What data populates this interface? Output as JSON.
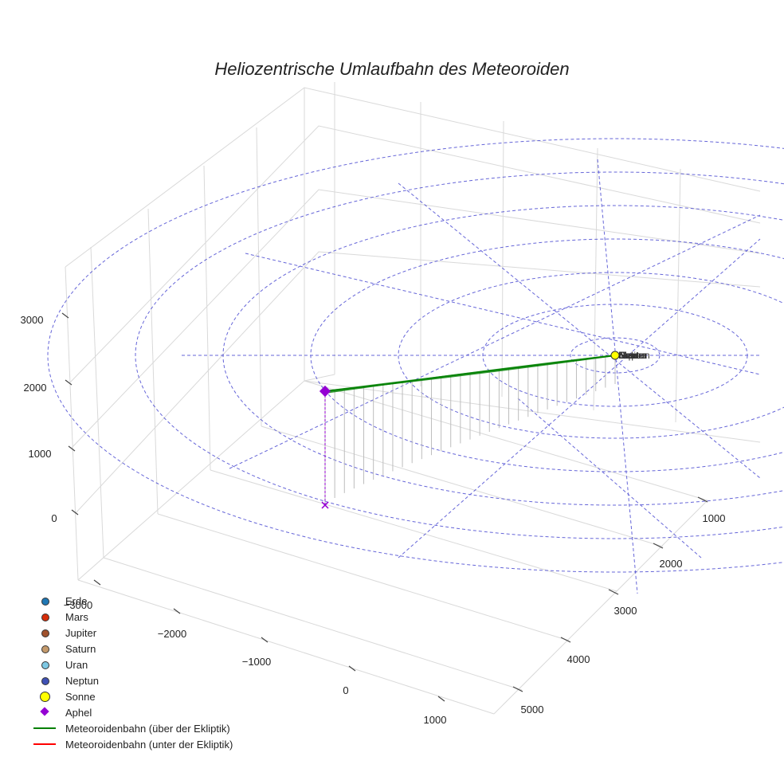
{
  "title": "Heliozentrische Umlaufbahn des Meteoroiden",
  "chart_data": {
    "type": "scatter3d",
    "title": "Heliozentrische Umlaufbahn des Meteoroiden",
    "xlabel": "",
    "ylabel": "",
    "zlabel": "",
    "x_ticks": [
      -3000,
      -2000,
      -1000,
      0,
      1000
    ],
    "y_ticks": [
      1000,
      2000,
      3000,
      4000,
      5000
    ],
    "z_ticks": [
      0,
      1000,
      2000,
      3000
    ],
    "legend_position": "bottom-left",
    "series": [
      {
        "name": "Erde",
        "kind": "marker",
        "color": "#1f77b4"
      },
      {
        "name": "Mars",
        "kind": "marker",
        "color": "#d62d0a"
      },
      {
        "name": "Jupiter",
        "kind": "marker",
        "color": "#a0522d"
      },
      {
        "name": "Saturn",
        "kind": "marker",
        "color": "#c49a6c"
      },
      {
        "name": "Uran",
        "kind": "marker",
        "color": "#7ec8e3"
      },
      {
        "name": "Neptun",
        "kind": "marker",
        "color": "#3f51b5"
      },
      {
        "name": "Sonne",
        "kind": "marker-large",
        "color": "#ffff00"
      },
      {
        "name": "Aphel",
        "kind": "diamond",
        "color": "#9400d3"
      },
      {
        "name": "Meteoroidenbahn (über der Ekliptik)",
        "kind": "line",
        "color": "#008000"
      },
      {
        "name": "Meteoroidenbahn (unter der Ekliptik)",
        "kind": "line",
        "color": "#ff0000"
      }
    ],
    "sun_labels": [
      "Erde",
      "Mars",
      "Jupiter",
      "Saturn",
      "Uran",
      "Neptun",
      "Sonne"
    ],
    "colors": {
      "grid": "#d9d9d9",
      "ecliptic": "#3333cc",
      "orbit": "#008000",
      "aphel": "#9400d3"
    }
  }
}
